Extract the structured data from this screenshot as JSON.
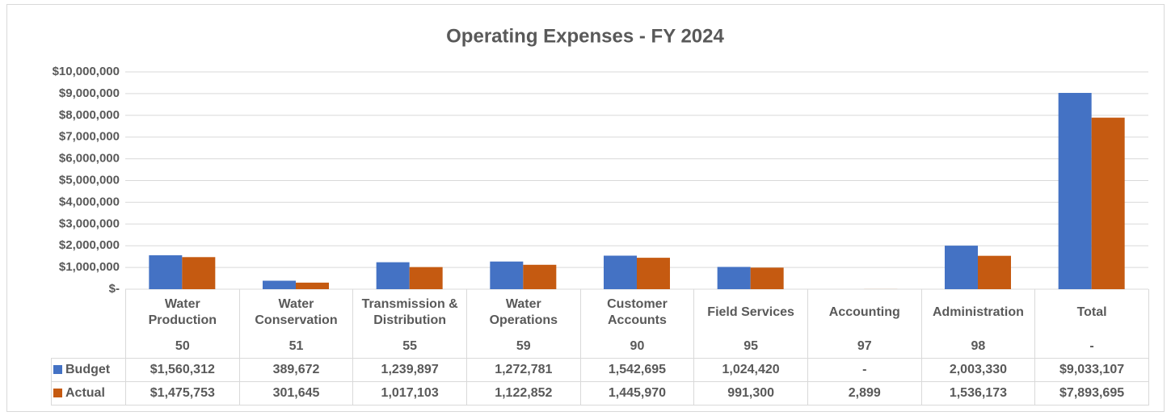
{
  "chart_data": {
    "type": "bar",
    "title": "Operating Expenses - FY 2024",
    "categories": [
      "Water Production",
      "Water Conservation",
      "Transmission & Distribution",
      "Water Operations",
      "Customer Accounts",
      "Field Services",
      "Accounting",
      "Administration",
      "Total"
    ],
    "codes": [
      "50",
      "51",
      "55",
      "59",
      "90",
      "95",
      "97",
      "98",
      "-"
    ],
    "series": [
      {
        "name": "Budget",
        "color": "#4472c4",
        "values": [
          1560312,
          389672,
          1239897,
          1272781,
          1542695,
          1024420,
          0,
          2003330,
          9033107
        ],
        "value_labels": [
          "$1,560,312",
          "389,672",
          "1,239,897",
          "1,272,781",
          "1,542,695",
          "1,024,420",
          "-",
          "2,003,330",
          "$9,033,107"
        ]
      },
      {
        "name": "Actual",
        "color": "#c55a11",
        "values": [
          1475753,
          301645,
          1017103,
          1122852,
          1445970,
          991300,
          2899,
          1536173,
          7893695
        ],
        "value_labels": [
          "$1,475,753",
          "301,645",
          "1,017,103",
          "1,122,852",
          "1,445,970",
          "991,300",
          "2,899",
          "1,536,173",
          "$7,893,695"
        ]
      }
    ],
    "ylim": [
      0,
      10000000
    ],
    "yticks": [
      {
        "value": 0,
        "label": "$-"
      },
      {
        "value": 1000000,
        "label": "$1,000,000"
      },
      {
        "value": 2000000,
        "label": "$2,000,000"
      },
      {
        "value": 3000000,
        "label": "$3,000,000"
      },
      {
        "value": 4000000,
        "label": "$4,000,000"
      },
      {
        "value": 5000000,
        "label": "$5,000,000"
      },
      {
        "value": 6000000,
        "label": "$6,000,000"
      },
      {
        "value": 7000000,
        "label": "$7,000,000"
      },
      {
        "value": 8000000,
        "label": "$8,000,000"
      },
      {
        "value": 9000000,
        "label": "$9,000,000"
      },
      {
        "value": 10000000,
        "label": "$10,000,000"
      }
    ],
    "grid": true
  }
}
